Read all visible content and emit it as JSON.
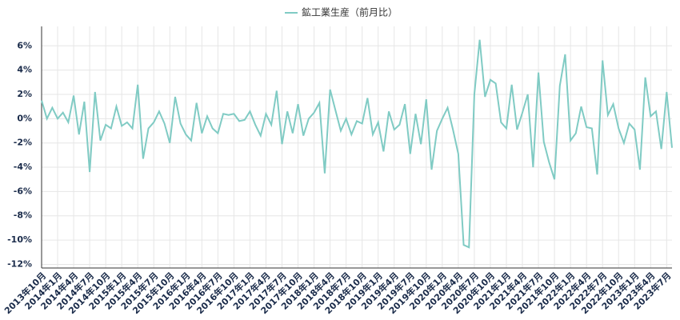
{
  "chart_data": {
    "type": "line",
    "categories": [
      "2013年10月",
      null,
      null,
      "2014年1月",
      null,
      null,
      "2014年4月",
      null,
      null,
      "2014年7月",
      null,
      null,
      "2014年10月",
      null,
      null,
      "2015年1月",
      null,
      null,
      "2015年4月",
      null,
      null,
      "2015年7月",
      null,
      null,
      "2015年10月",
      null,
      null,
      "2016年1月",
      null,
      null,
      "2016年4月",
      null,
      null,
      "2016年7月",
      null,
      null,
      "2016年10月",
      null,
      null,
      "2017年1月",
      null,
      null,
      "2017年4月",
      null,
      null,
      "2017年7月",
      null,
      null,
      "2017年10月",
      null,
      null,
      "2018年1月",
      null,
      null,
      "2018年4月",
      null,
      null,
      "2018年7月",
      null,
      null,
      "2018年10月",
      null,
      null,
      "2019年1月",
      null,
      null,
      "2019年4月",
      null,
      null,
      "2019年7月",
      null,
      null,
      "2019年10月",
      null,
      null,
      "2020年1月",
      null,
      null,
      "2020年4月",
      null,
      null,
      "2020年7月",
      null,
      null,
      "2020年10月",
      null,
      null,
      "2021年1月",
      null,
      null,
      "2021年4月",
      null,
      null,
      "2021年7月",
      null,
      null,
      "2021年10月",
      null,
      null,
      "2022年1月",
      null,
      null,
      "2022年4月",
      null,
      null,
      "2022年7月",
      null,
      null,
      "2022年10月",
      null,
      null,
      "2023年1月",
      null,
      null,
      "2023年4月",
      null,
      null,
      "2023年7月",
      null
    ],
    "series": [
      {
        "name": "鉱工業生産（前月比）",
        "color": "#80cbc4",
        "values": [
          1.5,
          0.0,
          0.9,
          0.0,
          0.5,
          -0.3,
          1.9,
          -1.3,
          1.4,
          -4.4,
          2.2,
          -1.8,
          -0.5,
          -0.8,
          1.0,
          -0.6,
          -0.3,
          -0.8,
          2.8,
          -3.3,
          -0.8,
          -0.3,
          0.6,
          -0.4,
          -2.0,
          1.8,
          -0.4,
          -1.3,
          -1.8,
          1.3,
          -1.2,
          0.2,
          -0.8,
          -1.2,
          0.4,
          0.3,
          0.4,
          -0.2,
          -0.1,
          0.6,
          -0.5,
          -1.4,
          0.4,
          -0.5,
          2.3,
          -2.1,
          0.6,
          -1.2,
          1.2,
          -1.4,
          0.0,
          0.5,
          1.3,
          -4.5,
          2.4,
          0.7,
          -1.0,
          0.0,
          -1.3,
          -0.2,
          -0.4,
          1.7,
          -1.3,
          -0.3,
          -2.7,
          0.6,
          -0.9,
          -0.5,
          1.2,
          -2.9,
          0.4,
          -2.1,
          1.6,
          -4.2,
          -1.0,
          0.0,
          0.9,
          -0.9,
          -2.9,
          -10.4,
          -10.6,
          2.0,
          6.5,
          1.8,
          3.2,
          2.9,
          -0.3,
          -0.8,
          2.8,
          -0.9,
          0.5,
          2.0,
          -4.0,
          3.8,
          -1.9,
          -3.6,
          -5.0,
          2.7,
          5.3,
          -1.8,
          -1.2,
          1.0,
          -0.7,
          -0.8,
          -4.6,
          4.8,
          0.3,
          1.2,
          -0.8,
          -2.0,
          -0.4,
          -0.9,
          -4.2,
          3.4,
          0.2,
          0.6,
          -2.5,
          2.2,
          -2.4
        ]
      }
    ],
    "ylim": [
      -12.3,
      7.6
    ],
    "yticks": [
      {
        "value": -12,
        "label": "-12%"
      },
      {
        "value": -10,
        "label": "-10%"
      },
      {
        "value": -8,
        "label": "-8%"
      },
      {
        "value": -6,
        "label": "-6%"
      },
      {
        "value": -4,
        "label": "-4%"
      },
      {
        "value": -2,
        "label": "-2%"
      },
      {
        "value": 0,
        "label": "0%"
      },
      {
        "value": 2,
        "label": "2%"
      },
      {
        "value": 4,
        "label": "4%"
      },
      {
        "value": 6,
        "label": "6%"
      }
    ],
    "grid": true,
    "legend": "top"
  }
}
